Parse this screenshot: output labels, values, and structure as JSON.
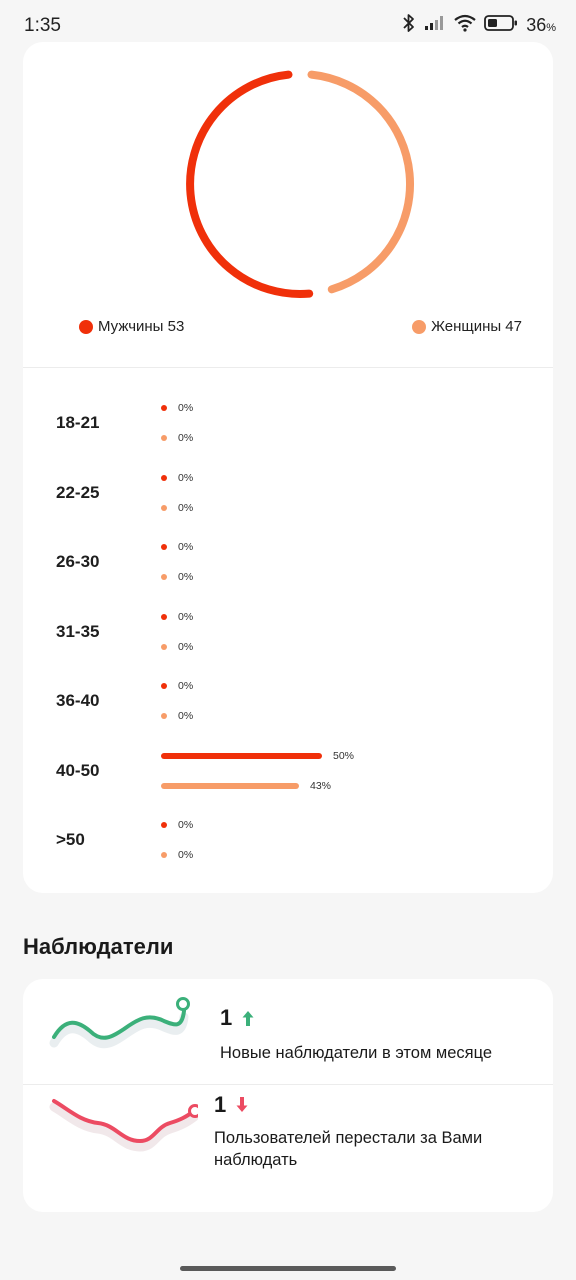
{
  "status_bar": {
    "time": "1:35",
    "battery_value": "36",
    "battery_unit": "%"
  },
  "gender": {
    "male_label": "Мужчины 53",
    "female_label": "Женщины 47",
    "male_share": 53,
    "female_share": 47,
    "male_color": "#f0300a",
    "female_color": "#f79c68"
  },
  "age_groups": [
    {
      "label": "18-21",
      "male_pct": "0%",
      "female_pct": "0%",
      "male_value": 0,
      "female_value": 0
    },
    {
      "label": "22-25",
      "male_pct": "0%",
      "female_pct": "0%",
      "male_value": 0,
      "female_value": 0
    },
    {
      "label": "26-30",
      "male_pct": "0%",
      "female_pct": "0%",
      "male_value": 0,
      "female_value": 0
    },
    {
      "label": "31-35",
      "male_pct": "0%",
      "female_pct": "0%",
      "male_value": 0,
      "female_value": 0
    },
    {
      "label": "36-40",
      "male_pct": "0%",
      "female_pct": "0%",
      "male_value": 0,
      "female_value": 0
    },
    {
      "label": "40-50",
      "male_pct": "50%",
      "female_pct": "43%",
      "male_value": 50,
      "female_value": 43
    },
    {
      "label": ">50",
      "male_pct": "0%",
      "female_pct": "0%",
      "male_value": 0,
      "female_value": 0
    }
  ],
  "watchers": {
    "title": "Наблюдатели",
    "new": {
      "count": "1",
      "description": "Новые наблюдатели в этом месяце",
      "trend_icon": "arrow-up-icon",
      "color": "#3bb07a"
    },
    "lost": {
      "count": "1",
      "description": "Пользователей перестали за Вами наблюдать",
      "trend_icon": "arrow-down-icon",
      "color": "#ec4b62"
    }
  }
}
